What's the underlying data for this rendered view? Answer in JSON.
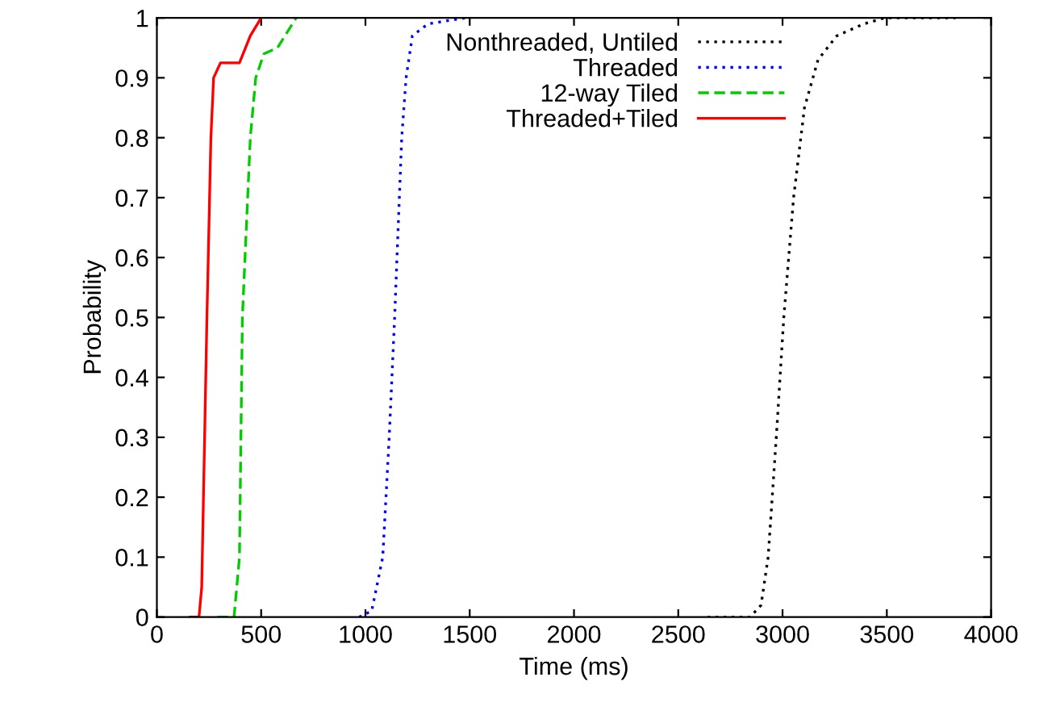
{
  "chart_data": {
    "type": "line",
    "xlabel": "Time (ms)",
    "ylabel": "Probability",
    "xlim": [
      0,
      4000
    ],
    "ylim": [
      0,
      1
    ],
    "xticks": [
      0,
      500,
      1000,
      1500,
      2000,
      2500,
      3000,
      3500,
      4000
    ],
    "yticks": [
      0,
      0.1,
      0.2,
      0.3,
      0.4,
      0.5,
      0.6,
      0.7,
      0.8,
      0.9,
      1
    ],
    "legend": "top right",
    "grid": false,
    "series": [
      {
        "name": "Nonthreaded, Untiled",
        "color": "#000000",
        "line_style": "dotted",
        "x": [
          2640,
          2845,
          2897,
          2931,
          2970,
          3006,
          3053,
          3105,
          3170,
          3260,
          3390,
          3490,
          3830
        ],
        "values": [
          0,
          0,
          0.02,
          0.1,
          0.3,
          0.5,
          0.7,
          0.85,
          0.93,
          0.97,
          0.99,
          1,
          1
        ]
      },
      {
        "name": "Threaded",
        "color": "#0000ff",
        "line_style": "dotted",
        "x": [
          970,
          1030,
          1083,
          1114,
          1140,
          1174,
          1195,
          1225,
          1300,
          1480
        ],
        "values": [
          0,
          0.01,
          0.1,
          0.3,
          0.5,
          0.8,
          0.9,
          0.97,
          0.99,
          1
        ]
      },
      {
        "name": "12-way Tiled",
        "color": "#00cc00",
        "line_style": "dashed",
        "x": [
          290,
          370,
          396,
          410,
          448,
          474,
          513,
          578,
          668
        ],
        "values": [
          0,
          0,
          0.1,
          0.5,
          0.8,
          0.9,
          0.94,
          0.95,
          1
        ]
      },
      {
        "name": "Threaded+Tiled",
        "color": "#ff0000",
        "line_style": "solid",
        "x": [
          160,
          202,
          215,
          240,
          259,
          272,
          305,
          396,
          448,
          500
        ],
        "values": [
          0,
          0,
          0.05,
          0.5,
          0.8,
          0.9,
          0.925,
          0.925,
          0.97,
          1
        ]
      }
    ]
  }
}
